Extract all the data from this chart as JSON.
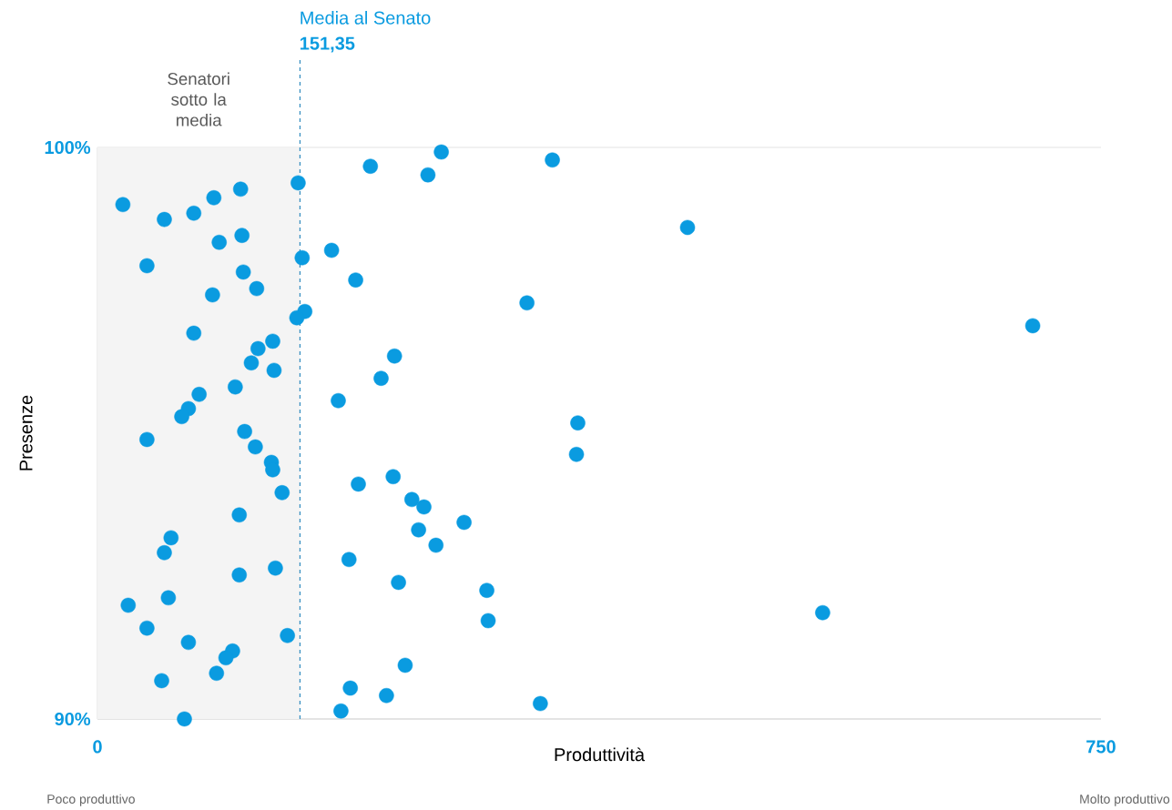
{
  "chart_data": {
    "type": "scatter",
    "xlabel": "Produttività",
    "ylabel": "Presenze",
    "color": "#0a9be0",
    "grid": "y",
    "xlim": [
      0,
      750
    ],
    "ylim": [
      90,
      100
    ],
    "xticks": [
      0,
      750
    ],
    "yticks": [
      {
        "value": 100,
        "label": "100%"
      },
      {
        "value": 90,
        "label": "90%"
      }
    ],
    "x": [
      257,
      340,
      204,
      247,
      150,
      107,
      87,
      19,
      72,
      50,
      441,
      108,
      91,
      175,
      153,
      37,
      109,
      193,
      119,
      86,
      321,
      155,
      149,
      699,
      72,
      131,
      120,
      222,
      115,
      132,
      212,
      103,
      76,
      180,
      68,
      63,
      359,
      110,
      37,
      118,
      358,
      130,
      131,
      221,
      195,
      138,
      235,
      244,
      106,
      274,
      240,
      55,
      253,
      50,
      188,
      133,
      106,
      225,
      291,
      53,
      23,
      542,
      292,
      37,
      142,
      68,
      101,
      96,
      230,
      89,
      48,
      189,
      216,
      331,
      182,
      65
    ],
    "values": [
      99.92,
      99.78,
      99.67,
      99.52,
      99.38,
      99.27,
      99.12,
      99.0,
      98.85,
      98.74,
      98.6,
      98.46,
      98.34,
      98.2,
      98.07,
      97.93,
      97.82,
      97.68,
      97.53,
      97.42,
      97.28,
      97.13,
      97.02,
      96.88,
      96.75,
      96.61,
      96.48,
      96.35,
      96.23,
      96.1,
      95.96,
      95.81,
      95.68,
      95.57,
      95.43,
      95.29,
      95.18,
      95.03,
      94.89,
      94.76,
      94.63,
      94.49,
      94.36,
      94.24,
      94.11,
      93.96,
      93.84,
      93.71,
      93.57,
      93.44,
      93.31,
      93.17,
      93.04,
      92.91,
      92.79,
      92.64,
      92.52,
      92.39,
      92.25,
      92.12,
      91.99,
      91.86,
      91.72,
      91.59,
      91.46,
      91.34,
      91.19,
      91.07,
      90.94,
      90.8,
      90.67,
      90.54,
      90.41,
      90.27,
      90.14,
      90.0
    ],
    "ref_lines": [
      {
        "axis": "x",
        "value": 151.35,
        "label": "Media al Senato",
        "color": "#1a7fb8",
        "line_style": "dashed"
      }
    ],
    "bands": [
      {
        "axis": "x",
        "from": 0,
        "to": 151.35,
        "label": "Senatori sotto la media",
        "color": "#f4f4f4"
      }
    ],
    "annotations": [
      "151,35",
      "Poco produttivo",
      "Molto produttivo"
    ]
  }
}
